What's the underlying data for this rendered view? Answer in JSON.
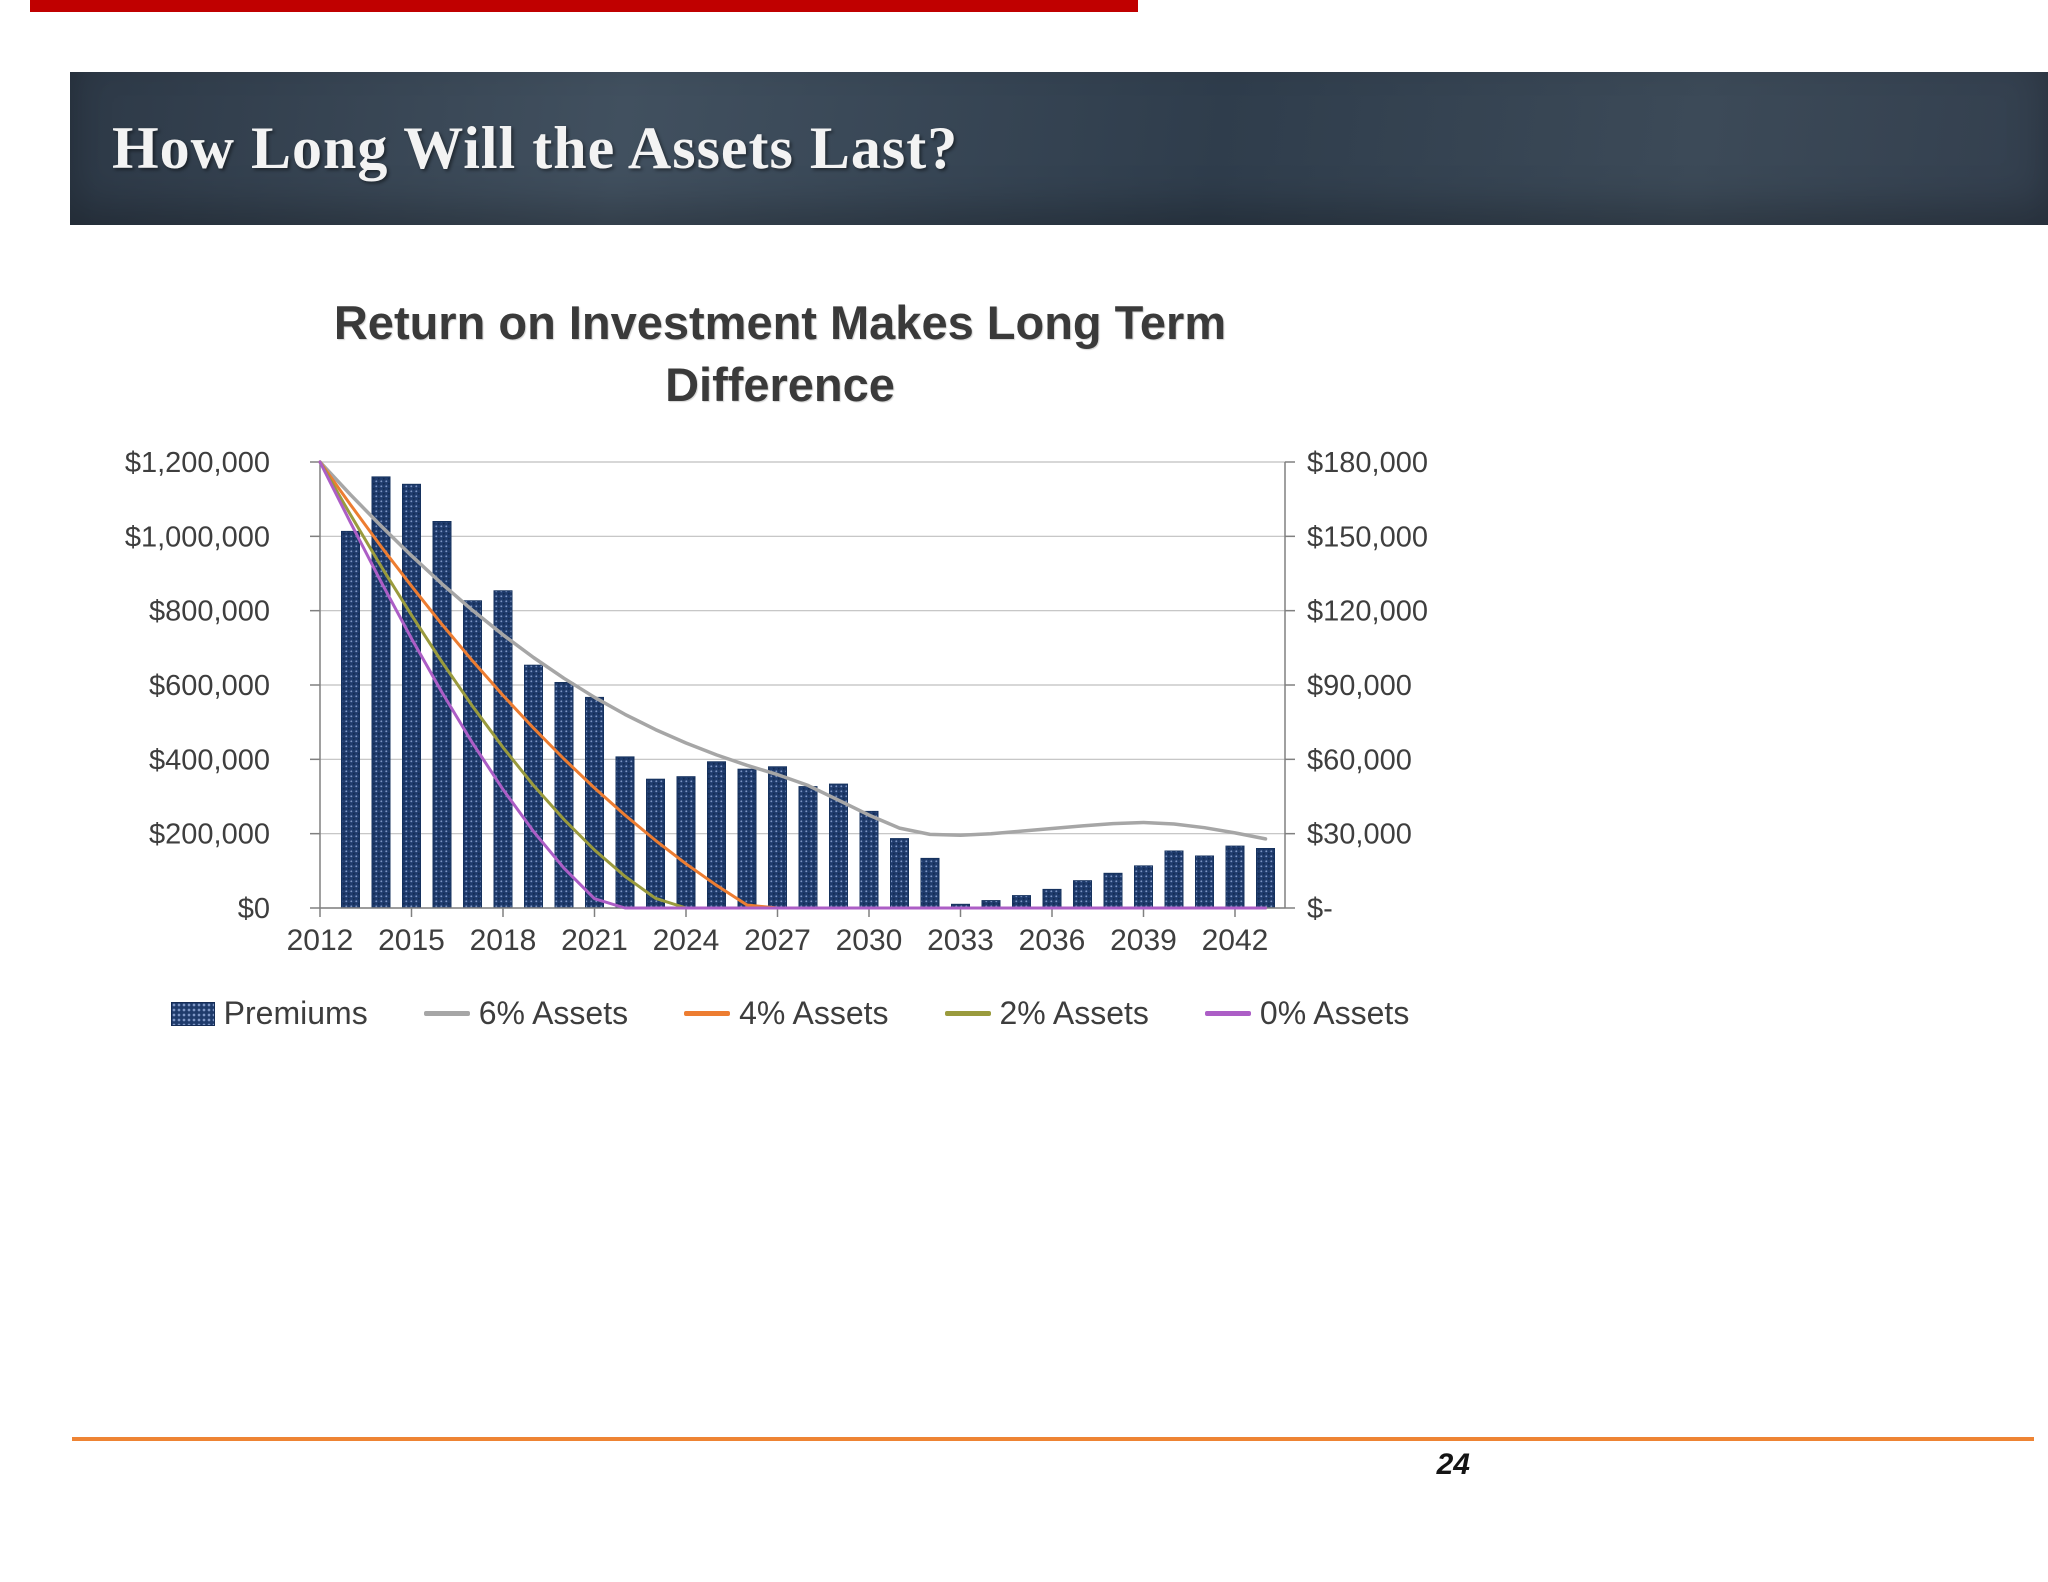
{
  "slide": {
    "top_strip_color": "#C00000",
    "header": {
      "title": "How Long Will the Assets Last?",
      "bg_color": "#34404E"
    },
    "footer": {
      "divider_color": "#EE8434",
      "page_number": "24"
    }
  },
  "chart_data": {
    "type": "combo-bar-line",
    "title": "Return on Investment Makes Long Term Difference",
    "title_lines": [
      "Return on Investment Makes Long Term",
      "Difference"
    ],
    "grid": true,
    "legend_position": "bottom",
    "x": [
      2012,
      2013,
      2014,
      2015,
      2016,
      2017,
      2018,
      2019,
      2020,
      2021,
      2022,
      2023,
      2024,
      2025,
      2026,
      2027,
      2028,
      2029,
      2030,
      2031,
      2032,
      2033,
      2034,
      2035,
      2036,
      2037,
      2038,
      2039,
      2040,
      2041,
      2042,
      2043
    ],
    "x_tick_years": [
      2012,
      2015,
      2018,
      2021,
      2024,
      2027,
      2030,
      2033,
      2036,
      2039,
      2042
    ],
    "x_tick_labels": [
      "2012",
      "2015",
      "2018",
      "2021",
      "2024",
      "2027",
      "2030",
      "2033",
      "2036",
      "2039",
      "2042"
    ],
    "left_axis": {
      "min": 0,
      "max": 1200000,
      "ticks": [
        "$1,200,000",
        "$1,000,000",
        "$800,000",
        "$600,000",
        "$400,000",
        "$200,000",
        "$0"
      ]
    },
    "right_axis": {
      "min": 0,
      "max": 180000,
      "ticks": [
        "$180,000",
        "$150,000",
        "$120,000",
        "$90,000",
        "$60,000",
        "$30,000",
        "$-"
      ]
    },
    "bar_series": {
      "name": "Premiums",
      "axis": "right",
      "color": "#1F3B6C",
      "values": [
        null,
        152000,
        174000,
        171000,
        156000,
        124000,
        128000,
        98000,
        91000,
        85000,
        61000,
        52000,
        53000,
        59000,
        56000,
        57000,
        49000,
        50000,
        39000,
        28000,
        20000,
        1500,
        3000,
        5000,
        7500,
        11000,
        14000,
        17000,
        23000,
        21000,
        25000,
        24000
      ]
    },
    "line_series": [
      {
        "name": "6% Assets",
        "axis": "left",
        "color": "#A6A6A6",
        "values": [
          1200000,
          1112000,
          1028000,
          948000,
          872000,
          801000,
          735000,
          674000,
          618000,
          567000,
          521000,
          480000,
          444000,
          412000,
          384000,
          359000,
          330000,
          290000,
          250000,
          215000,
          198000,
          196000,
          200000,
          207000,
          214000,
          221000,
          227000,
          230000,
          226000,
          216000,
          202000,
          186000
        ]
      },
      {
        "name": "4% Assets",
        "axis": "left",
        "color": "#ED7D31",
        "values": [
          1200000,
          1085000,
          973000,
          866000,
          763000,
          665000,
          572000,
          484000,
          401000,
          323000,
          250000,
          182000,
          119000,
          61000,
          8000,
          0,
          0,
          0,
          0,
          0,
          0,
          0,
          0,
          0,
          0,
          0,
          0,
          0,
          0,
          0,
          0,
          0
        ]
      },
      {
        "name": "2% Assets",
        "axis": "left",
        "color": "#9A9B3D",
        "values": [
          1200000,
          1058000,
          920000,
          788000,
          662000,
          543000,
          432000,
          330000,
          238000,
          156000,
          85000,
          26000,
          0,
          0,
          0,
          0,
          0,
          0,
          0,
          0,
          0,
          0,
          0,
          0,
          0,
          0,
          0,
          0,
          0,
          0,
          0,
          0
        ]
      },
      {
        "name": "0% Assets",
        "axis": "left",
        "color": "#AC5EC6",
        "values": [
          1200000,
          1037000,
          878000,
          725000,
          580000,
          444000,
          319000,
          206000,
          107000,
          25000,
          0,
          0,
          0,
          0,
          0,
          0,
          0,
          0,
          0,
          0,
          0,
          0,
          0,
          0,
          0,
          0,
          0,
          0,
          0,
          0,
          0,
          0
        ]
      }
    ]
  }
}
